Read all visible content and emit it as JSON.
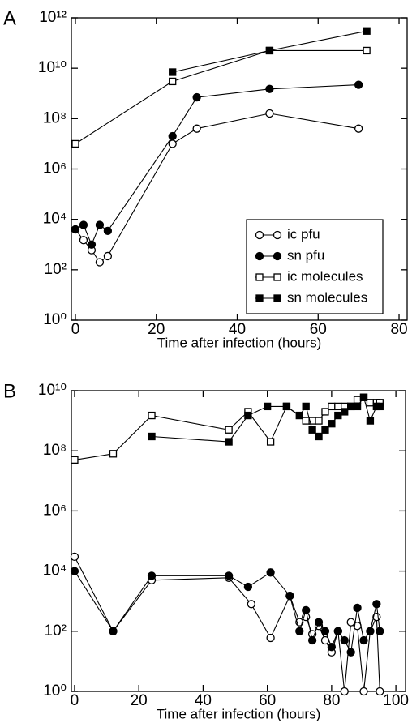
{
  "chart_data": [
    {
      "type": "line",
      "panel_label": "A",
      "x_label": "Time after infection (hours)",
      "log_y": true,
      "xlim": [
        -1,
        82
      ],
      "ylim": [
        1,
        1000000000000.0
      ],
      "xticks": [
        0,
        20,
        40,
        60,
        80
      ],
      "yticks": [
        {
          "value": 1,
          "label": "10⁰"
        },
        {
          "value": 100,
          "label": "10²"
        },
        {
          "value": 10000,
          "label": "10⁴"
        },
        {
          "value": 1000000,
          "label": "10⁶"
        },
        {
          "value": 100000000,
          "label": "10⁸"
        },
        {
          "value": 10000000000,
          "label": "10¹⁰"
        },
        {
          "value": 1000000000000,
          "label": "10¹²"
        }
      ],
      "legend": "lower right",
      "series": [
        {
          "name": "ic pfu",
          "color": "#000000",
          "marker": "circle",
          "filled": false,
          "x": [
            0,
            2,
            4,
            6,
            8,
            24,
            30,
            48,
            70
          ],
          "values": [
            4000,
            1500,
            600,
            200,
            350,
            10000000,
            40000000,
            160000000,
            40000000
          ]
        },
        {
          "name": "sn pfu",
          "color": "#000000",
          "marker": "circle",
          "filled": true,
          "x": [
            0,
            2,
            4,
            6,
            8,
            24,
            30,
            48,
            70
          ],
          "values": [
            4000,
            6000,
            1000,
            6000,
            3500,
            20000000,
            700000000,
            1500000000,
            2200000000
          ]
        },
        {
          "name": "ic molecules",
          "color": "#000000",
          "marker": "square",
          "filled": false,
          "x": [
            0,
            24,
            48,
            72
          ],
          "values": [
            10000000,
            3000000000,
            50000000000,
            50000000000
          ]
        },
        {
          "name": "sn molecules",
          "color": "#000000",
          "marker": "square",
          "filled": true,
          "x": [
            24,
            48,
            72
          ],
          "values": [
            7000000000,
            50000000000,
            300000000000
          ]
        }
      ]
    },
    {
      "type": "line",
      "panel_label": "B",
      "x_label": "Time after infection (hours)",
      "log_y": true,
      "xlim": [
        -1,
        103
      ],
      "ylim": [
        1,
        10000000000.0
      ],
      "xticks": [
        0,
        20,
        40,
        60,
        80,
        100
      ],
      "yticks": [
        {
          "value": 1,
          "label": "10⁰"
        },
        {
          "value": 100,
          "label": "10²"
        },
        {
          "value": 10000,
          "label": "10⁴"
        },
        {
          "value": 1000000,
          "label": "10⁶"
        },
        {
          "value": 100000000,
          "label": "10⁸"
        },
        {
          "value": 10000000000,
          "label": "10¹⁰"
        }
      ],
      "series": [
        {
          "color": "#000000",
          "marker": "circle",
          "filled": false,
          "x": [
            0,
            12,
            24,
            48,
            55,
            61,
            67,
            70,
            72,
            74,
            76,
            78,
            80,
            82,
            84,
            86,
            88,
            90,
            92,
            94,
            95
          ],
          "values": [
            30000,
            100,
            5000,
            6000,
            800,
            60,
            1500,
            200,
            300,
            80,
            150,
            50,
            20,
            100,
            1,
            200,
            150,
            1,
            100,
            300,
            1
          ]
        },
        {
          "color": "#000000",
          "marker": "circle",
          "filled": true,
          "x": [
            0,
            12,
            24,
            48,
            54,
            61,
            67,
            70,
            72,
            74,
            76,
            78,
            80,
            82,
            84,
            86,
            88,
            90,
            92,
            94,
            95
          ],
          "values": [
            10000,
            100,
            7000,
            7000,
            3000,
            9000,
            1500,
            100,
            500,
            50,
            200,
            100,
            30,
            100,
            50,
            20,
            600,
            50,
            100,
            800,
            100
          ]
        },
        {
          "color": "#000000",
          "marker": "square",
          "filled": false,
          "x": [
            0,
            12,
            24,
            48,
            54,
            61,
            66,
            72,
            74,
            76,
            78,
            80,
            82,
            84,
            86,
            88,
            90,
            92,
            94,
            95
          ],
          "values": [
            50000000,
            80000000,
            1500000000,
            500000000,
            2000000000,
            200000000,
            3000000000,
            1000000000,
            1000000000,
            1000000000,
            2000000000,
            3000000000,
            3000000000,
            3000000000,
            3000000000,
            5000000000,
            6000000000,
            4000000000,
            4000000000,
            4000000000
          ]
        },
        {
          "color": "#000000",
          "marker": "square",
          "filled": true,
          "x": [
            24,
            48,
            54,
            60,
            66,
            70,
            72,
            74,
            76,
            78,
            80,
            82,
            84,
            86,
            88,
            90,
            92,
            94,
            95
          ],
          "values": [
            300000000,
            200000000,
            1500000000,
            3000000000,
            3000000000,
            1500000000,
            3000000000,
            500000000,
            300000000,
            500000000,
            800000000,
            1500000000,
            2000000000,
            3000000000,
            3000000000,
            6000000000,
            1000000000,
            3000000000,
            3000000000
          ]
        }
      ]
    }
  ]
}
